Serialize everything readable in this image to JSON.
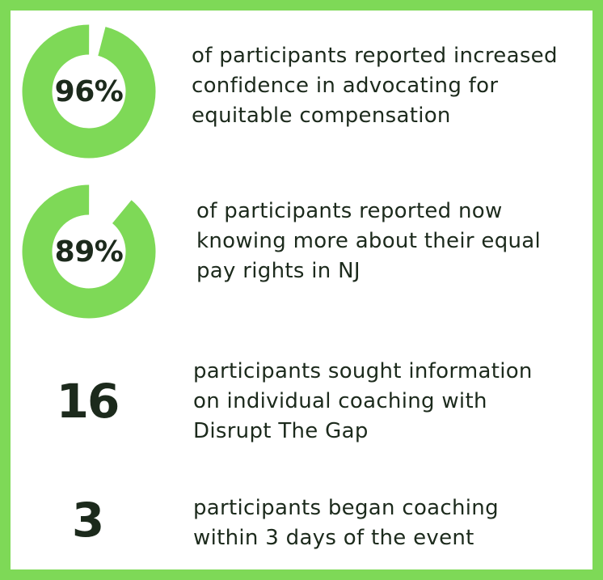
{
  "colors": {
    "accent": "#7ed957",
    "track": "#ffffff",
    "text": "#1c2a1c",
    "background": "#ffffff"
  },
  "stats": [
    {
      "value_label": "96%",
      "fraction": 0.96,
      "lines": [
        "of participants reported increased",
        "confidence in advocating for",
        "equitable compensation"
      ]
    },
    {
      "value_label": "89%",
      "fraction": 0.89,
      "lines": [
        "of participants reported now",
        "knowing more about their equal",
        "pay rights in NJ"
      ]
    },
    {
      "value_label": "16",
      "lines": [
        "participants sought information",
        "on individual coaching with",
        "Disrupt The Gap"
      ]
    },
    {
      "value_label": "3",
      "lines": [
        "participants began coaching",
        "within 3 days of the event"
      ]
    }
  ]
}
